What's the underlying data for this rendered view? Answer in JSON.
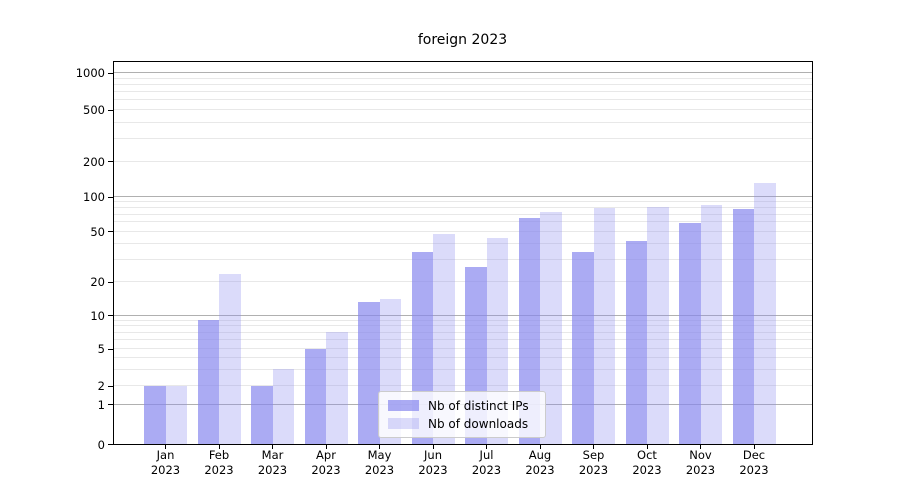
{
  "chart_data": {
    "type": "bar",
    "title": "foreign 2023",
    "months": [
      "Jan",
      "Feb",
      "Mar",
      "Apr",
      "May",
      "Jun",
      "Jul",
      "Aug",
      "Sep",
      "Oct",
      "Nov",
      "Dec"
    ],
    "year_label": "2023",
    "series": [
      {
        "name": "Nb of distinct IPs",
        "color": "#8888ee",
        "alpha": 0.7,
        "values": [
          2,
          9,
          2,
          5,
          13,
          34,
          26,
          65,
          34,
          42,
          59,
          78
        ]
      },
      {
        "name": "Nb of downloads",
        "color": "#8888ee",
        "alpha": 0.3,
        "values": [
          2,
          23,
          3,
          7,
          14,
          47,
          44,
          74,
          79,
          81,
          85,
          130
        ]
      }
    ],
    "y_ticks": [
      0,
      1,
      2,
      5,
      10,
      20,
      50,
      100,
      200,
      500,
      1000
    ],
    "y_scale": "symlog",
    "ylim": [
      0,
      1260
    ],
    "grid": true,
    "legend_position": "lower-center-inside"
  },
  "colors": {
    "major_grid": "#b0b0b0",
    "minor_grid": "#e8e8e8",
    "spine": "#000000",
    "legend_border": "#cccccc",
    "background": "#ffffff"
  }
}
